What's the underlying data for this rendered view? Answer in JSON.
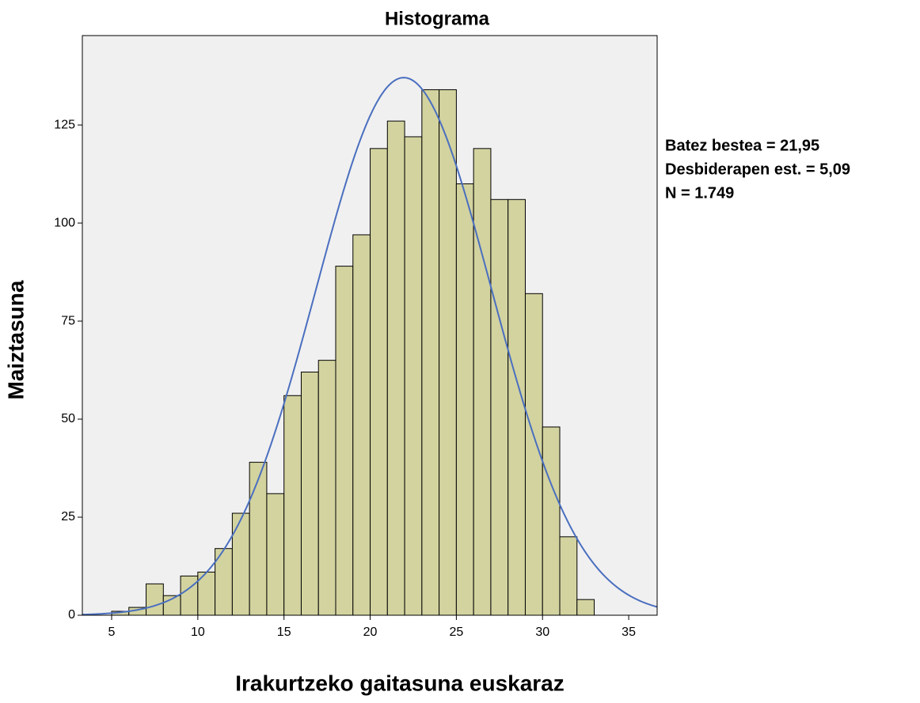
{
  "chart_data": {
    "type": "histogram",
    "title": "Histograma",
    "x_label": "Irakurtzeko gaitasuna euskaraz",
    "y_label": "Maiztasuna",
    "bins": [
      5,
      6,
      7,
      8,
      9,
      10,
      11,
      12,
      13,
      14,
      15,
      16,
      17,
      18,
      19,
      20,
      21,
      22,
      23,
      24,
      25,
      26,
      27,
      28,
      29,
      30,
      31,
      32,
      33
    ],
    "values": [
      1,
      2,
      8,
      5,
      10,
      11,
      17,
      26,
      39,
      31,
      56,
      62,
      65,
      89,
      97,
      119,
      126,
      122,
      134,
      134,
      110,
      119,
      106,
      106,
      82,
      48,
      20,
      4
    ],
    "color": "#d3d3a0",
    "background": "#f0f0f0",
    "xlim": [
      3.3,
      36.65
    ],
    "xticks": [
      5,
      10,
      15,
      20,
      25,
      30,
      35
    ],
    "ylim": [
      0,
      147.8
    ],
    "yticks": [
      0,
      25,
      50,
      75,
      100,
      125
    ],
    "normal_curve": {
      "mean": 21.95,
      "sd": 5.09,
      "n": 1749,
      "color": "#4a6fbf"
    },
    "annotations": [
      "Batez bestea = 21,95",
      "Desbiderapen est. = 5,09",
      "N = 1.749"
    ]
  }
}
